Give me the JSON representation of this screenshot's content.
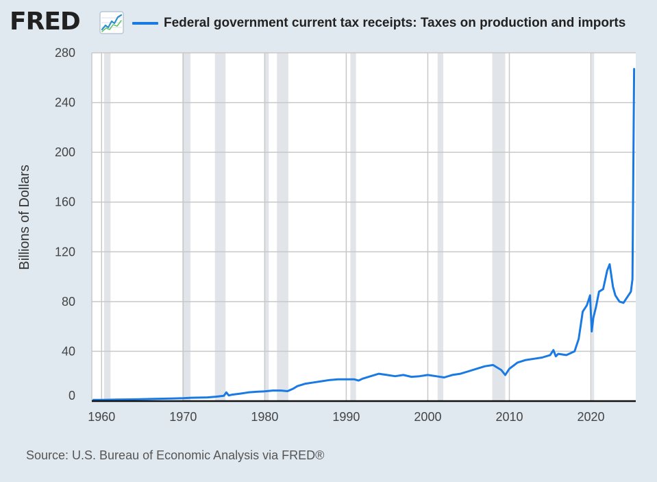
{
  "header": {
    "logo_text": "FRED",
    "logo_icon": "line-graph-icon",
    "legend_label": "Federal government current tax receipts: Taxes on production and imports",
    "accent_color": "#1a7ae3"
  },
  "source": "Source: U.S. Bureau of Economic Analysis via FRED®",
  "chart_data": {
    "type": "line",
    "title": "Federal government current tax receipts: Taxes on production and imports",
    "ylabel": "Billions of Dollars",
    "xlabel": "",
    "ylim": [
      0,
      280
    ],
    "xlim": [
      1958.8,
      2025.5
    ],
    "yticks": [
      0,
      40,
      80,
      120,
      160,
      200,
      240,
      280
    ],
    "xticks": [
      1960,
      1970,
      1980,
      1990,
      2000,
      2010,
      2020
    ],
    "grid": true,
    "recessions": [
      [
        1960.3,
        1961.1
      ],
      [
        1969.9,
        1970.9
      ],
      [
        1973.9,
        1975.2
      ],
      [
        1980.0,
        1980.5
      ],
      [
        1981.5,
        1982.9
      ],
      [
        1990.5,
        1991.2
      ],
      [
        2001.2,
        2001.9
      ],
      [
        2007.9,
        2009.5
      ],
      [
        2020.1,
        2020.4
      ]
    ],
    "series": [
      {
        "name": "Federal government current tax receipts: Taxes on production and imports",
        "x": [
          1959,
          1960,
          1962,
          1964,
          1966,
          1968,
          1970,
          1971,
          1972,
          1973,
          1974,
          1975,
          1975.3,
          1975.6,
          1976,
          1977,
          1978,
          1979,
          1980,
          1981,
          1982,
          1982.8,
          1983.5,
          1984,
          1985,
          1986,
          1987,
          1988,
          1989,
          1990,
          1991,
          1991.5,
          1992,
          1993,
          1994,
          1995,
          1996,
          1997,
          1998,
          1999,
          2000,
          2001,
          2002,
          2003,
          2004,
          2005,
          2006,
          2007,
          2008,
          2009,
          2009.5,
          2010,
          2011,
          2012,
          2013,
          2014,
          2015,
          2015.4,
          2015.7,
          2016,
          2017,
          2018,
          2018.5,
          2019,
          2019.5,
          2019.9,
          2020.1,
          2020.3,
          2020.6,
          2021,
          2021.5,
          2022,
          2022.3,
          2022.7,
          2023,
          2023.5,
          2024,
          2024.3,
          2024.6,
          2024.9,
          2025.1,
          2025.3
        ],
        "values": [
          1,
          1,
          1.2,
          1.4,
          1.7,
          2,
          2.3,
          2.7,
          2.8,
          3,
          3.5,
          4.3,
          7,
          4.5,
          5.2,
          6,
          7,
          7.5,
          7.8,
          8.5,
          8.5,
          8,
          10,
          12,
          14,
          15,
          16,
          17,
          17.5,
          17.5,
          17.5,
          16.5,
          18,
          20,
          22,
          21,
          20,
          21,
          19.5,
          20,
          21,
          20,
          19,
          21,
          22,
          24,
          26,
          28,
          29,
          25,
          21,
          26,
          31,
          33,
          34,
          35,
          37,
          41,
          36,
          38,
          37,
          40,
          50,
          72,
          77,
          85,
          56,
          67,
          75,
          88,
          90,
          105,
          110,
          92,
          85,
          80,
          79,
          82,
          85,
          88,
          98,
          267
        ]
      }
    ]
  }
}
